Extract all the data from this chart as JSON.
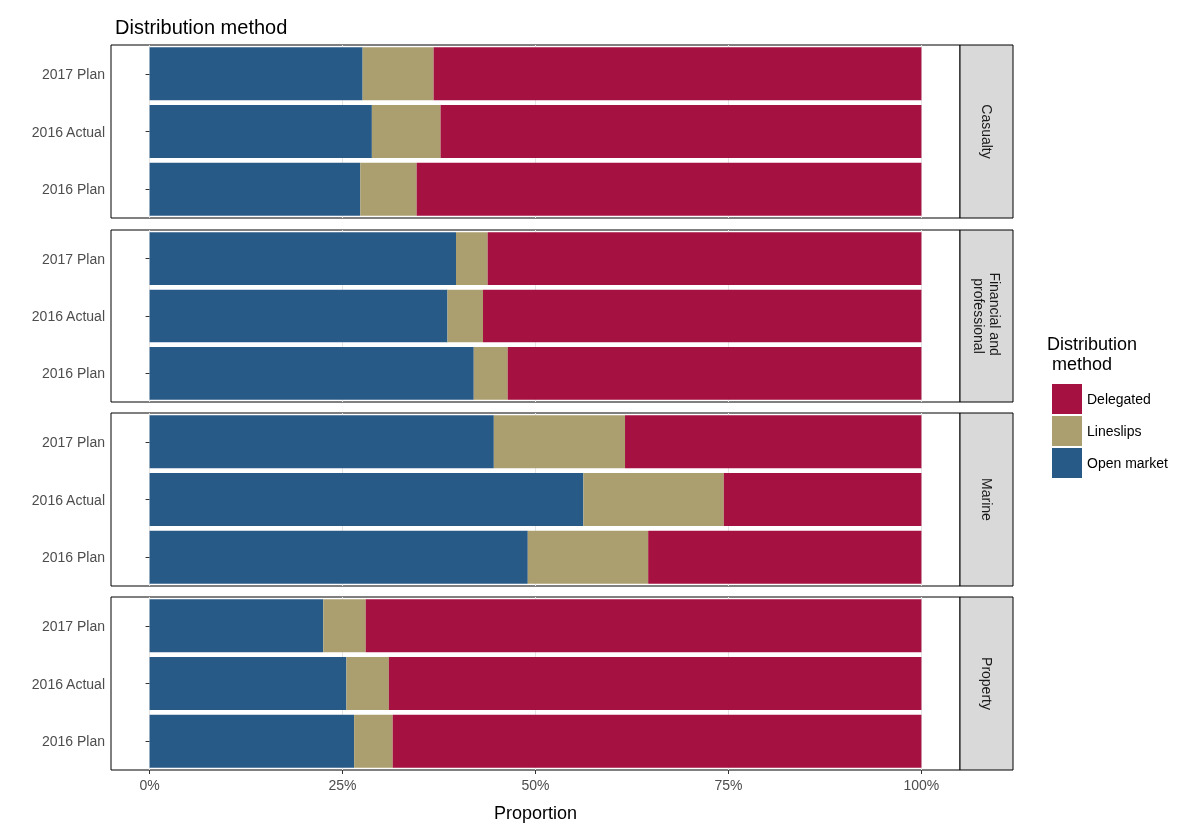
{
  "chart_data": [
    {
      "type": "bar",
      "title": "Distribution method",
      "y2label": "Casualty",
      "orientation": "horizontal",
      "stacked": true,
      "categories": [
        "2017 Plan",
        "2016 Actual",
        "2016 Plan"
      ],
      "series": [
        {
          "color": "#285a87",
          "values": [
            27.6,
            28.8,
            27.3
          ]
        },
        {
          "color": "#ac9f6f",
          "values": [
            9.2,
            8.9,
            7.3
          ]
        },
        {
          "color": "#a51140",
          "values": [
            63.2,
            62.3,
            65.4
          ]
        }
      ],
      "xlim": [
        -5,
        105
      ],
      "xticks": [
        {
          "value": 0,
          "label": null
        },
        {
          "value": 25,
          "label": null
        },
        {
          "value": 50,
          "label": null
        },
        {
          "value": 75,
          "label": null
        },
        {
          "value": 100,
          "label": null
        }
      ],
      "grid": "x",
      "tick_labels": "y"
    },
    {
      "type": "bar",
      "y2label": "Financial and professional",
      "orientation": "horizontal",
      "stacked": true,
      "categories": [
        "2017 Plan",
        "2016 Actual",
        "2016 Plan"
      ],
      "legend": "right",
      "legend_title": "Distribution method",
      "series": [
        {
          "name": "Open market",
          "color": "#285a87",
          "values": [
            39.7,
            38.6,
            42.0
          ]
        },
        {
          "name": "Lineslips",
          "color": "#ac9f6f",
          "values": [
            4.1,
            4.6,
            4.4
          ]
        },
        {
          "name": "Delegated",
          "color": "#a51140",
          "values": [
            56.2,
            56.8,
            53.6
          ]
        }
      ],
      "xlim": [
        -5,
        105
      ],
      "xticks": [
        {
          "value": 0,
          "label": null
        },
        {
          "value": 25,
          "label": null
        },
        {
          "value": 50,
          "label": null
        },
        {
          "value": 75,
          "label": null
        },
        {
          "value": 100,
          "label": null
        }
      ],
      "grid": "x",
      "tick_labels": "y"
    },
    {
      "type": "bar",
      "y2label": "Marine",
      "orientation": "horizontal",
      "stacked": true,
      "categories": [
        "2017 Plan",
        "2016 Actual",
        "2016 Plan"
      ],
      "series": [
        {
          "color": "#285a87",
          "values": [
            44.6,
            56.2,
            49.0
          ]
        },
        {
          "color": "#ac9f6f",
          "values": [
            17.0,
            18.2,
            15.6
          ]
        },
        {
          "color": "#a51140",
          "values": [
            38.4,
            25.6,
            35.4
          ]
        }
      ],
      "xlim": [
        -5,
        105
      ],
      "xticks": [
        {
          "value": 0,
          "label": null
        },
        {
          "value": 25,
          "label": null
        },
        {
          "value": 50,
          "label": null
        },
        {
          "value": 75,
          "label": null
        },
        {
          "value": 100,
          "label": null
        }
      ],
      "grid": "x",
      "tick_labels": "y"
    },
    {
      "type": "bar",
      "y2label": "Property",
      "xlabel": "Proportion",
      "orientation": "horizontal",
      "stacked": true,
      "categories": [
        "2017 Plan",
        "2016 Actual",
        "2016 Plan"
      ],
      "series": [
        {
          "color": "#285a87",
          "values": [
            22.5,
            25.5,
            26.5
          ]
        },
        {
          "color": "#ac9f6f",
          "values": [
            5.5,
            5.5,
            5.0
          ]
        },
        {
          "color": "#a51140",
          "values": [
            72.0,
            69.0,
            68.5
          ]
        }
      ],
      "xlim": [
        -5,
        105
      ],
      "xticks": [
        {
          "value": 0,
          "label": "0%"
        },
        {
          "value": 25,
          "label": "25%"
        },
        {
          "value": 50,
          "label": "50%"
        },
        {
          "value": 75,
          "label": "75%"
        },
        {
          "value": 100,
          "label": "100%"
        }
      ],
      "grid": "x"
    }
  ]
}
